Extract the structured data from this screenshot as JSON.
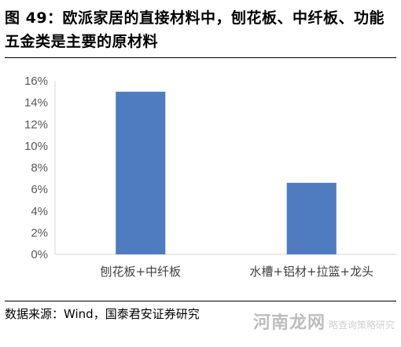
{
  "figure": {
    "title": "图 49：欧派家居的直接材料中，刨花板、中纤板、功能五金类是主要的原材料",
    "source": "数据来源：Wind，国泰君安证券研究"
  },
  "watermark": {
    "big": "河南龙网",
    "small": "略查询策略研究"
  },
  "chart_data": {
    "type": "bar",
    "categories": [
      "刨花板+中纤板",
      "水槽+铝材+拉篮+龙头"
    ],
    "values": [
      0.15,
      0.066
    ],
    "ylim": [
      0,
      0.16
    ],
    "yticks": [
      "0%",
      "2%",
      "4%",
      "6%",
      "8%",
      "10%",
      "12%",
      "14%",
      "16%"
    ],
    "bar_color": "#4F7CC0",
    "axis_color": "#D9D9D9",
    "grid": false,
    "title": "",
    "xlabel": "",
    "ylabel": ""
  }
}
